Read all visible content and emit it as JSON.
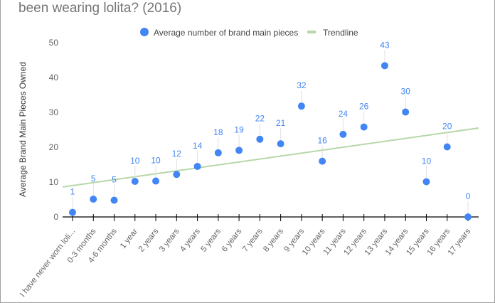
{
  "chart_data": {
    "type": "scatter",
    "title_lines": [
      "",
      "been wearing lolita? (2016)"
    ],
    "xlabel": "",
    "ylabel": "Average Brand Main Pieces Owned",
    "ylim": [
      0,
      50
    ],
    "yticks": [
      0,
      10,
      20,
      30,
      40,
      50
    ],
    "grid": false,
    "legend_position": "top",
    "categories": [
      "I have never worn loli...",
      "0-3 months",
      "4-6 months",
      "1 year",
      "2 years",
      "3 years",
      "4 years",
      "5 years",
      "6 years",
      "7 years",
      "8 years",
      "9 years",
      "10 years",
      "11 years",
      "12 years",
      "13 years",
      "14 years",
      "15 years",
      "16 years",
      "17 years"
    ],
    "series": [
      {
        "name": "Average number of brand main pieces",
        "color": "#4285f4",
        "values": [
          1.3,
          5.1,
          4.8,
          10.2,
          10.3,
          12.2,
          14.5,
          18.4,
          19.1,
          22.3,
          21.0,
          31.8,
          16.0,
          23.7,
          25.8,
          43.4,
          30.1,
          10.1,
          20.1,
          0
        ],
        "labels": [
          "1",
          "5",
          "5",
          "10",
          "10",
          "12",
          "14",
          "18",
          "19",
          "22",
          "21",
          "32",
          "16",
          "24",
          "26",
          "43",
          "30",
          "10",
          "20",
          "0"
        ]
      },
      {
        "name": "Trendline",
        "color": "#b7d7a8",
        "type": "line",
        "start": 8.6,
        "end": 25.5
      }
    ]
  }
}
